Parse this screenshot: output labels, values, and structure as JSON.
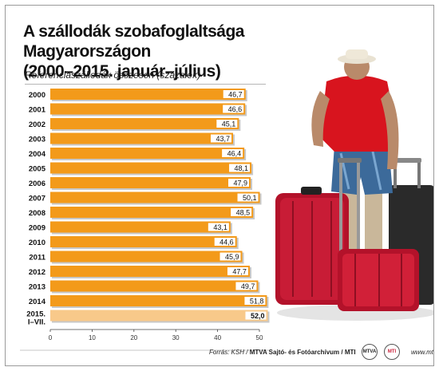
{
  "title_line1": "A szállodák szobafoglaltsága Magyarországon",
  "title_line2": "(2000–2015. január–július)",
  "footer": {
    "source": "Forrás: KSH /",
    "agency": "MTVA Sajtó- és Fotóarchívum / MTI",
    "logo1": "MTVA",
    "logo2": "MTI",
    "url": "www.mti.hu"
  },
  "colors": {
    "bar": "#f39a1a",
    "bar_highlight": "#f8c98a",
    "value_box": "#ffffff"
  },
  "chart_data": {
    "type": "bar",
    "orientation": "horizontal",
    "title": "A szállodák szobafoglaltsága Magyarországon (2000–2015. január–július)",
    "subtitle": "Referenciaszállodák összesen (százalék)",
    "categories": [
      "2000",
      "2001",
      "2002",
      "2003",
      "2004",
      "2005",
      "2006",
      "2007",
      "2008",
      "2009",
      "2010",
      "2011",
      "2012",
      "2013",
      "2014",
      "2015. I–VII."
    ],
    "values": [
      46.7,
      46.6,
      45.1,
      43.7,
      46.4,
      48.1,
      47.9,
      50.1,
      48.5,
      43.1,
      44.6,
      45.9,
      47.7,
      49.7,
      51.8,
      52.0
    ],
    "value_labels": [
      "46,7",
      "46,6",
      "45,1",
      "43,7",
      "46,4",
      "48,1",
      "47,9",
      "50,1",
      "48,5",
      "43,1",
      "44,6",
      "45,9",
      "47,7",
      "49,7",
      "51,8",
      "52,0"
    ],
    "highlight_index": 15,
    "xlim": [
      0,
      50
    ],
    "xticks": [
      0,
      10,
      20,
      30,
      40,
      50
    ],
    "xtick_labels": [
      "0",
      "10",
      "20",
      "30",
      "40",
      "50"
    ],
    "xlabel": "",
    "ylabel": "",
    "legend": "none",
    "grid": false
  }
}
